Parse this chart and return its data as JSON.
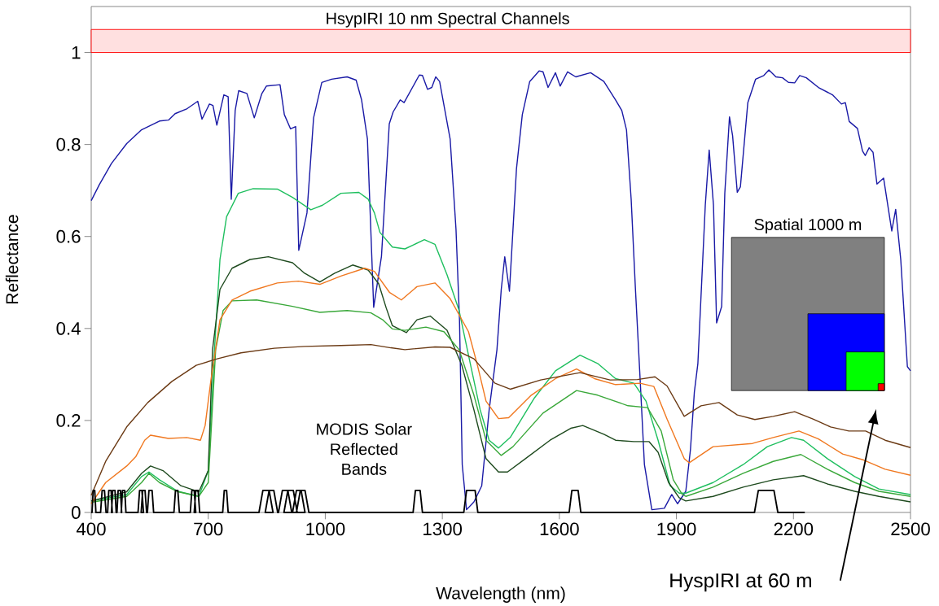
{
  "chart_data": {
    "type": "line",
    "xlabel": "Wavelength (nm)",
    "ylabel": "Reflectance",
    "xlim": [
      400,
      2500
    ],
    "ylim": [
      0,
      1.1
    ],
    "xticks": [
      400,
      700,
      1000,
      1300,
      1600,
      1900,
      2200,
      2500
    ],
    "yticks": [
      0,
      0.2,
      0.4,
      0.6,
      0.8,
      1
    ],
    "bands": [
      {
        "axis": "y",
        "from": 1.0,
        "to": 1.05,
        "label": "HsypIRI 10 nm Spectral Channels",
        "color": "#ff0000"
      }
    ],
    "annotations": [
      "Spatial 1000 m",
      "HyspIRI at 60 m"
    ],
    "series": [
      {
        "color": "#1a1aa6",
        "x": [
          400,
          421,
          452,
          491,
          529,
          575,
          598,
          615,
          646,
          673,
          684,
          703,
          712,
          722,
          740,
          751,
          759,
          769,
          778,
          799,
          818,
          837,
          849,
          884,
          895,
          911,
          924,
          932,
          953,
          970,
          991,
          1016,
          1056,
          1079,
          1093,
          1108,
          1124,
          1144,
          1164,
          1174,
          1192,
          1202,
          1241,
          1249,
          1262,
          1273,
          1283,
          1293,
          1320,
          1335,
          1344,
          1351,
          1362,
          1381,
          1401,
          1420,
          1440,
          1451,
          1460,
          1472,
          1490,
          1505,
          1524,
          1548,
          1558,
          1571,
          1590,
          1602,
          1621,
          1642,
          1680,
          1714,
          1744,
          1760,
          1772,
          1784,
          1795,
          1807,
          1818,
          1837,
          1869,
          1888,
          1903,
          1924,
          1936,
          1946,
          1955,
          1974,
          1984,
          1995,
          2003,
          2016,
          2024,
          2036,
          2044,
          2056,
          2064,
          2083,
          2103,
          2124,
          2137,
          2155,
          2172,
          2187,
          2203,
          2216,
          2233,
          2264,
          2300,
          2323,
          2333,
          2343,
          2364,
          2377,
          2384,
          2394,
          2404,
          2414,
          2431,
          2452,
          2462,
          2475,
          2492,
          2500
        ],
        "values": [
          0.678,
          0.713,
          0.759,
          0.802,
          0.832,
          0.851,
          0.853,
          0.867,
          0.878,
          0.894,
          0.855,
          0.888,
          0.885,
          0.842,
          0.908,
          0.904,
          0.681,
          0.874,
          0.917,
          0.911,
          0.858,
          0.91,
          0.927,
          0.93,
          0.865,
          0.834,
          0.839,
          0.57,
          0.651,
          0.858,
          0.935,
          0.942,
          0.947,
          0.94,
          0.897,
          0.812,
          0.446,
          0.557,
          0.845,
          0.871,
          0.897,
          0.891,
          0.951,
          0.95,
          0.92,
          0.924,
          0.947,
          0.937,
          0.812,
          0.616,
          0.419,
          0.104,
          0.006,
          0.023,
          0.058,
          0.223,
          0.354,
          0.485,
          0.556,
          0.481,
          0.747,
          0.865,
          0.937,
          0.96,
          0.958,
          0.924,
          0.956,
          0.927,
          0.958,
          0.947,
          0.956,
          0.937,
          0.897,
          0.874,
          0.832,
          0.681,
          0.485,
          0.289,
          0.104,
          0.006,
          0.009,
          0.039,
          0.019,
          0.046,
          0.137,
          0.262,
          0.324,
          0.668,
          0.788,
          0.668,
          0.412,
          0.448,
          0.694,
          0.86,
          0.819,
          0.696,
          0.708,
          0.891,
          0.942,
          0.95,
          0.962,
          0.947,
          0.945,
          0.935,
          0.934,
          0.95,
          0.945,
          0.924,
          0.908,
          0.888,
          0.891,
          0.85,
          0.835,
          0.786,
          0.776,
          0.793,
          0.783,
          0.714,
          0.727,
          0.612,
          0.659,
          0.55,
          0.317,
          0.308
        ]
      },
      {
        "color": "#1fbf5f",
        "x": [
          400,
          491,
          529,
          548,
          575,
          622,
          676,
          700,
          716,
          730,
          747,
          777,
          815,
          877,
          916,
          963,
          993,
          1040,
          1086,
          1110,
          1126,
          1140,
          1172,
          1204,
          1254,
          1281,
          1312,
          1343,
          1374,
          1397,
          1420,
          1444,
          1474,
          1536,
          1590,
          1653,
          1698,
          1744,
          1791,
          1822,
          1853,
          1884,
          1907,
          1924,
          1994,
          2071,
          2133,
          2195,
          2226,
          2287,
          2357,
          2419,
          2500
        ],
        "values": [
          0.025,
          0.039,
          0.078,
          0.088,
          0.071,
          0.046,
          0.035,
          0.091,
          0.354,
          0.55,
          0.643,
          0.694,
          0.704,
          0.703,
          0.685,
          0.658,
          0.668,
          0.694,
          0.696,
          0.681,
          0.651,
          0.609,
          0.577,
          0.573,
          0.593,
          0.583,
          0.517,
          0.439,
          0.314,
          0.223,
          0.157,
          0.14,
          0.163,
          0.249,
          0.308,
          0.342,
          0.324,
          0.291,
          0.281,
          0.242,
          0.157,
          0.058,
          0.042,
          0.042,
          0.065,
          0.104,
          0.143,
          0.163,
          0.157,
          0.117,
          0.078,
          0.051,
          0.039
        ]
      },
      {
        "color": "#1e4a1e",
        "x": [
          400,
          491,
          529,
          552,
          584,
          630,
          676,
          700,
          711,
          730,
          761,
          807,
          854,
          916,
          947,
          986,
          1024,
          1070,
          1110,
          1137,
          1156,
          1172,
          1208,
          1235,
          1269,
          1312,
          1350,
          1381,
          1412,
          1444,
          1467,
          1513,
          1576,
          1629,
          1660,
          1714,
          1744,
          1791,
          1830,
          1853,
          1880,
          1907,
          1924,
          1994,
          2071,
          2148,
          2226,
          2287,
          2357,
          2419,
          2500
        ],
        "values": [
          0.025,
          0.045,
          0.085,
          0.101,
          0.091,
          0.058,
          0.045,
          0.091,
          0.354,
          0.485,
          0.531,
          0.55,
          0.556,
          0.543,
          0.52,
          0.501,
          0.52,
          0.538,
          0.527,
          0.497,
          0.445,
          0.406,
          0.391,
          0.419,
          0.427,
          0.396,
          0.32,
          0.223,
          0.117,
          0.088,
          0.088,
          0.117,
          0.157,
          0.183,
          0.189,
          0.17,
          0.157,
          0.154,
          0.154,
          0.131,
          0.065,
          0.032,
          0.025,
          0.035,
          0.055,
          0.071,
          0.08,
          0.062,
          0.046,
          0.035,
          0.023
        ]
      },
      {
        "color": "#3aa83a",
        "x": [
          400,
          491,
          529,
          548,
          575,
          622,
          676,
          700,
          719,
          738,
          761,
          824,
          916,
          986,
          1056,
          1117,
          1147,
          1172,
          1204,
          1258,
          1304,
          1343,
          1381,
          1412,
          1451,
          1481,
          1558,
          1644,
          1698,
          1776,
          1826,
          1861,
          1892,
          1915,
          1924,
          1994,
          2071,
          2148,
          2219,
          2287,
          2357,
          2419,
          2500
        ],
        "values": [
          0.022,
          0.035,
          0.065,
          0.085,
          0.065,
          0.045,
          0.035,
          0.065,
          0.354,
          0.439,
          0.46,
          0.462,
          0.448,
          0.435,
          0.439,
          0.434,
          0.419,
          0.399,
          0.396,
          0.403,
          0.393,
          0.354,
          0.255,
          0.157,
          0.124,
          0.143,
          0.216,
          0.265,
          0.255,
          0.232,
          0.228,
          0.177,
          0.071,
          0.039,
          0.035,
          0.055,
          0.085,
          0.111,
          0.126,
          0.094,
          0.065,
          0.046,
          0.035
        ]
      },
      {
        "color": "#f07820",
        "x": [
          400,
          437,
          491,
          514,
          537,
          552,
          598,
          645,
          680,
          692,
          707,
          730,
          761,
          807,
          877,
          931,
          986,
          1040,
          1101,
          1126,
          1165,
          1195,
          1235,
          1281,
          1320,
          1367,
          1390,
          1412,
          1444,
          1470,
          1528,
          1590,
          1644,
          1690,
          1744,
          1807,
          1842,
          1876,
          1920,
          1933,
          1994,
          2095,
          2148,
          2214,
          2264,
          2326,
          2380,
          2435,
          2500
        ],
        "values": [
          0.019,
          0.065,
          0.101,
          0.121,
          0.157,
          0.168,
          0.161,
          0.163,
          0.157,
          0.189,
          0.289,
          0.419,
          0.462,
          0.481,
          0.499,
          0.503,
          0.496,
          0.514,
          0.531,
          0.524,
          0.478,
          0.462,
          0.491,
          0.499,
          0.465,
          0.393,
          0.32,
          0.242,
          0.204,
          0.206,
          0.255,
          0.291,
          0.312,
          0.291,
          0.278,
          0.281,
          0.274,
          0.203,
          0.117,
          0.108,
          0.143,
          0.15,
          0.163,
          0.177,
          0.16,
          0.127,
          0.114,
          0.094,
          0.081
        ]
      },
      {
        "color": "#6b3a14",
        "x": [
          400,
          437,
          491,
          545,
          607,
          669,
          723,
          784,
          869,
          947,
          1040,
          1117,
          1168,
          1204,
          1281,
          1320,
          1381,
          1435,
          1474,
          1552,
          1653,
          1730,
          1800,
          1845,
          1876,
          1920,
          1963,
          2009,
          2056,
          2101,
          2148,
          2203,
          2250,
          2295,
          2342,
          2385,
          2435,
          2500
        ],
        "values": [
          0.037,
          0.111,
          0.186,
          0.239,
          0.285,
          0.32,
          0.334,
          0.347,
          0.357,
          0.361,
          0.363,
          0.365,
          0.358,
          0.354,
          0.36,
          0.359,
          0.334,
          0.281,
          0.268,
          0.288,
          0.304,
          0.288,
          0.289,
          0.295,
          0.275,
          0.209,
          0.232,
          0.239,
          0.212,
          0.202,
          0.209,
          0.219,
          0.203,
          0.186,
          0.177,
          0.177,
          0.157,
          0.141
        ]
      },
      {
        "name": "MODIS Solar Reflected Bands",
        "color": "#000000",
        "x": [
          400,
          402,
          405,
          409,
          412,
          424,
          428,
          434,
          438,
          442,
          445,
          451,
          454,
          452,
          455,
          461,
          464,
          466,
          469,
          475,
          478,
          477,
          480,
          486,
          489,
          520,
          524,
          530,
          534,
          528,
          532,
          538,
          542,
          544,
          548,
          556,
          560,
          612,
          616,
          622,
          626,
          654,
          658,
          664,
          668,
          664,
          668,
          674,
          678,
          737,
          741,
          747,
          751,
          830,
          840,
          856,
          866,
          846,
          856,
          868,
          878,
          880,
          890,
          904,
          914,
          894,
          904,
          918,
          928,
          916,
          926,
          938,
          948,
          926,
          936,
          948,
          958,
          1225,
          1231,
          1243,
          1249,
          1355,
          1362,
          1384,
          1391,
          1625,
          1632,
          1648,
          1655,
          2100,
          2110,
          2150,
          2160,
          2229
        ],
        "values": [
          0,
          0,
          0.048,
          0.048,
          0,
          0,
          0.048,
          0.048,
          0,
          0,
          0.048,
          0.048,
          0,
          0,
          0.048,
          0.048,
          0,
          0,
          0.048,
          0.048,
          0,
          0,
          0.048,
          0.048,
          0,
          0,
          0.048,
          0.048,
          0,
          0,
          0.048,
          0.048,
          0,
          0,
          0.048,
          0.048,
          0,
          0,
          0.048,
          0.048,
          0,
          0,
          0.048,
          0.048,
          0,
          0,
          0.048,
          0.048,
          0,
          0,
          0.048,
          0.048,
          0,
          0,
          0.048,
          0.048,
          0,
          0,
          0.048,
          0.048,
          0,
          0,
          0.048,
          0.048,
          0,
          0,
          0.048,
          0.048,
          0,
          0,
          0.048,
          0.048,
          0,
          0,
          0.048,
          0.048,
          0,
          0,
          0.048,
          0.048,
          0,
          0,
          0.048,
          0.048,
          0,
          0,
          0.048,
          0.048,
          0,
          0,
          0.048,
          0.048,
          0,
          0
        ]
      }
    ]
  }
}
